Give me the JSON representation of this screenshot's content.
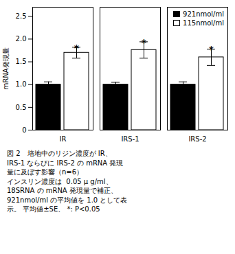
{
  "chart_data": {
    "type": "bar",
    "categories": [
      "IR",
      "IRS-1",
      "IRS-2"
    ],
    "series": [
      {
        "name": "921nmol/ml",
        "color": "#000000",
        "values": [
          1.0,
          1.0,
          1.0
        ],
        "errors": [
          0.06,
          0.05,
          0.06
        ]
      },
      {
        "name": "115nmol/ml",
        "color": "#ffffff",
        "values": [
          1.7,
          1.76,
          1.6
        ],
        "errors": [
          0.12,
          0.18,
          0.18
        ]
      }
    ],
    "ylabel": "mRNA発現量",
    "ylim": [
      0,
      2.7
    ],
    "yticks": [
      0,
      0.5,
      {
        "value": 1.0,
        "label": "1.0"
      },
      1.5,
      {
        "value": 2.0,
        "label": "2.0"
      },
      2.5
    ],
    "legend": "upper right",
    "annotations": [
      {
        "text": "*",
        "category": "IR",
        "series": "115nmol/ml"
      },
      {
        "text": "*",
        "category": "IRS-1",
        "series": "115nmol/ml"
      },
      {
        "text": "*",
        "category": "IRS-2",
        "series": "115nmol/ml"
      }
    ],
    "caption": [
      "図 2　培地中のリジン濃度が IR、",
      "IRS-1 ならびに IRS-2 の mRNA 発現",
      "量に及ぼす影響（n=6）",
      "インスリン濃度は  0.05 μ g/ml、",
      "18SRNA の mRNA 発現量で補正、",
      "921nmol/ml の平均値を 1.0 として表",
      "示。 平均値±SE、 *: P<0.05"
    ]
  }
}
